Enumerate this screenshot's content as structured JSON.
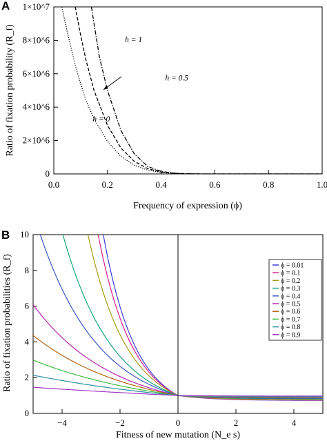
{
  "chart_data": [
    {
      "panel_label": "A",
      "type": "line",
      "xlabel": "Frequency of expression (ϕ)",
      "ylabel": "Ratio of fixation probability (R_f)",
      "xlim": [
        0,
        1
      ],
      "ylim": [
        0,
        10000000
      ],
      "xticks": [
        0.0,
        0.2,
        0.4,
        0.6,
        0.8,
        1.0
      ],
      "xtick_labels": [
        "0.0",
        "0.2",
        "0.4",
        "0.6",
        "0.8",
        "1.0"
      ],
      "yticks": [
        0,
        2000000,
        4000000,
        6000000,
        8000000,
        10000000
      ],
      "ytick_labels": [
        "0",
        "2×10^6",
        "4×10^6",
        "6×10^6",
        "8×10^6",
        "1×10^7"
      ],
      "grid": false,
      "series": [
        {
          "name": "h = 0",
          "style": "dotted",
          "x": [
            0.03,
            0.05,
            0.08,
            0.1,
            0.12,
            0.15,
            0.2,
            0.25,
            0.3,
            0.35,
            0.4,
            0.45,
            0.5
          ],
          "y": [
            10000000,
            8500000,
            6500000,
            5400000,
            4400000,
            3300000,
            1950000,
            1050000,
            520000,
            230000,
            90000,
            30000,
            8000
          ]
        },
        {
          "name": "h = 0.5",
          "style": "dashed",
          "x": [
            0.08,
            0.1,
            0.12,
            0.15,
            0.2,
            0.25,
            0.3,
            0.35,
            0.4,
            0.45,
            0.5
          ],
          "y": [
            10000000,
            8300000,
            6800000,
            5000000,
            2900000,
            1550000,
            750000,
            320000,
            110000,
            35000,
            10000
          ]
        },
        {
          "name": "h = 1",
          "style": "dash-dot",
          "x": [
            0.14,
            0.15,
            0.17,
            0.2,
            0.25,
            0.3,
            0.35,
            0.4,
            0.45,
            0.5
          ],
          "y": [
            10000000,
            9000000,
            7000000,
            5000000,
            2600000,
            1200000,
            450000,
            150000,
            45000,
            10000
          ]
        }
      ],
      "annotations": [
        {
          "text": "h = 1",
          "x": 0.265,
          "y": 7900000
        },
        {
          "text": "h = 0.5",
          "x": 0.415,
          "y": 5600000
        },
        {
          "text": "h = 0",
          "x": 0.145,
          "y": 3150000
        }
      ]
    },
    {
      "panel_label": "B",
      "type": "line",
      "xlabel": "Fitness of new mutation (N_e s)",
      "ylabel": "Ratio of fixation probabilities (R_f)",
      "xlim": [
        -5,
        5
      ],
      "ylim": [
        0,
        10
      ],
      "xticks": [
        -4,
        -2,
        0,
        2,
        4
      ],
      "xtick_labels": [
        "−4",
        "−2",
        "0",
        "2",
        "4"
      ],
      "yticks": [
        0,
        2,
        4,
        6,
        8,
        10
      ],
      "ytick_labels": [
        "0",
        "2",
        "4",
        "6",
        "8",
        "10"
      ],
      "grid": false,
      "vline_x": 0,
      "legend_position": "top-right",
      "series": [
        {
          "name": "ϕ = 0.01",
          "color": "#3b3bd6",
          "k": 0.94
        },
        {
          "name": "ϕ = 0.1",
          "color": "#d61e8c",
          "k": 0.88
        },
        {
          "name": "ϕ = 0.2",
          "color": "#a89a14",
          "k": 0.78
        },
        {
          "name": "ϕ = 0.3",
          "color": "#17a57c",
          "k": 0.61
        },
        {
          "name": "ϕ = 0.4",
          "color": "#3a55c8",
          "k": 0.51
        },
        {
          "name": "ϕ = 0.5",
          "color": "#b626b6",
          "k": 0.38
        },
        {
          "name": "ϕ = 0.6",
          "color": "#b06214",
          "k": 0.31
        },
        {
          "name": "ϕ = 0.7",
          "color": "#3dbb3d",
          "k": 0.23
        },
        {
          "name": "ϕ = 0.8",
          "color": "#2f8fa6",
          "k": 0.16
        },
        {
          "name": "ϕ = 0.9",
          "color": "#9e34c6",
          "k": 0.08
        }
      ]
    }
  ]
}
